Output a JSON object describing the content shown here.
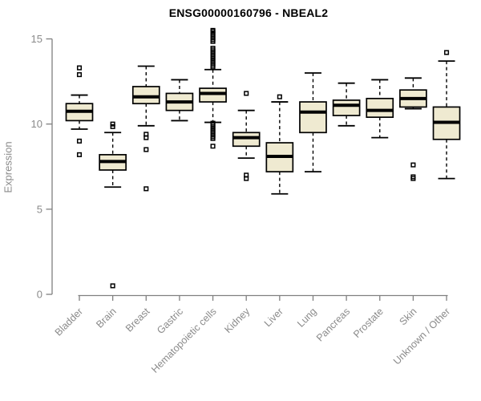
{
  "chart_data": {
    "type": "boxplot",
    "title": "ENSG00000160796 - NBEAL2",
    "ylabel": "Expression",
    "xlabel": "",
    "ylim": [
      0,
      15
    ],
    "yticks": [
      0,
      5,
      10,
      15
    ],
    "grid": false,
    "legend": "none",
    "categories": [
      "Bladder",
      "Brain",
      "Breast",
      "Gastric",
      "Hematopoietic cells",
      "Kidney",
      "Liver",
      "Lung",
      "Pancreas",
      "Prostate",
      "Skin",
      "Unknown / Other"
    ],
    "series": [
      {
        "label": "Bladder",
        "whislo": 9.7,
        "q1": 10.2,
        "med": 10.75,
        "q3": 11.2,
        "whishi": 11.7,
        "outliers": [
          13.3,
          12.9,
          9.0,
          8.2
        ]
      },
      {
        "label": "Brain",
        "whislo": 6.3,
        "q1": 7.3,
        "med": 7.8,
        "q3": 8.2,
        "whishi": 9.5,
        "outliers": [
          10.0,
          9.85,
          0.5
        ]
      },
      {
        "label": "Breast",
        "whislo": 9.9,
        "q1": 11.2,
        "med": 11.6,
        "q3": 12.2,
        "whishi": 13.4,
        "outliers": [
          9.4,
          9.2,
          8.5,
          6.2
        ]
      },
      {
        "label": "Gastric",
        "whislo": 10.2,
        "q1": 10.8,
        "med": 11.3,
        "q3": 11.8,
        "whishi": 12.6,
        "outliers": []
      },
      {
        "label": "Hematopoietic cells",
        "whislo": 10.1,
        "q1": 11.3,
        "med": 11.8,
        "q3": 12.1,
        "whishi": 13.2,
        "outliers": [
          15.5,
          15.45,
          15.35,
          15.25,
          15.15,
          15.05,
          14.95,
          14.85,
          14.45,
          14.35,
          14.25,
          14.15,
          14.05,
          13.95,
          13.85,
          13.75,
          13.65,
          13.55,
          13.45,
          13.35,
          10.05,
          9.95,
          9.85,
          9.75,
          9.65,
          9.55,
          9.45,
          9.35,
          9.25,
          9.15,
          8.7
        ]
      },
      {
        "label": "Kidney",
        "whislo": 8.0,
        "q1": 8.7,
        "med": 9.2,
        "q3": 9.5,
        "whishi": 10.8,
        "outliers": [
          11.8,
          7.0,
          6.8
        ]
      },
      {
        "label": "Liver",
        "whislo": 5.9,
        "q1": 7.2,
        "med": 8.1,
        "q3": 8.9,
        "whishi": 11.3,
        "outliers": [
          11.6
        ]
      },
      {
        "label": "Lung",
        "whislo": 7.2,
        "q1": 9.5,
        "med": 10.7,
        "q3": 11.3,
        "whishi": 13.0,
        "outliers": []
      },
      {
        "label": "Pancreas",
        "whislo": 9.9,
        "q1": 10.5,
        "med": 11.1,
        "q3": 11.4,
        "whishi": 12.4,
        "outliers": []
      },
      {
        "label": "Prostate",
        "whislo": 9.2,
        "q1": 10.4,
        "med": 10.8,
        "q3": 11.5,
        "whishi": 12.6,
        "outliers": []
      },
      {
        "label": "Skin",
        "whislo": 10.9,
        "q1": 11.0,
        "med": 11.5,
        "q3": 12.0,
        "whishi": 12.7,
        "outliers": [
          7.6,
          6.9,
          6.8
        ]
      },
      {
        "label": "Unknown / Other",
        "whislo": 6.8,
        "q1": 9.1,
        "med": 10.1,
        "q3": 11.0,
        "whishi": 13.7,
        "outliers": [
          14.2
        ]
      }
    ],
    "colors": {
      "box_fill": "#EFEAD1",
      "box_stroke": "#000000",
      "median": "#000000",
      "whisker": "#000000",
      "outlier": "#000000",
      "axis": "#808080",
      "tick_text": "#8a8a8a",
      "title_text": "#000000"
    }
  }
}
